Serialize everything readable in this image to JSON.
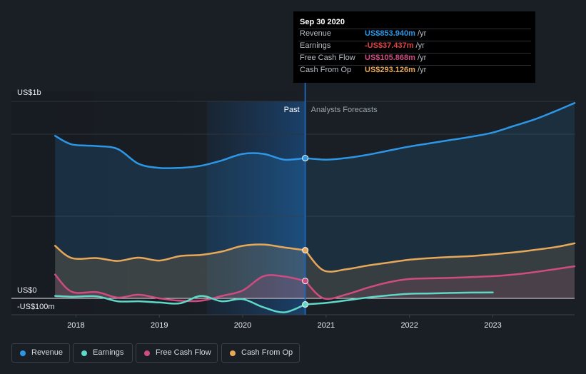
{
  "tooltip": {
    "date": "Sep 30 2020",
    "rows": [
      {
        "label": "Revenue",
        "value": "US$853.940m",
        "unit": " /yr",
        "color": "#2d97e6"
      },
      {
        "label": "Earnings",
        "value": "-US$37.437m",
        "unit": " /yr",
        "color": "#e04343"
      },
      {
        "label": "Free Cash Flow",
        "value": "US$105.868m",
        "unit": " /yr",
        "color": "#cf4c80"
      },
      {
        "label": "Cash From Op",
        "value": "US$293.126m",
        "unit": " /yr",
        "color": "#e8a85a"
      }
    ]
  },
  "legend": [
    {
      "label": "Revenue",
      "color": "#2d97e6"
    },
    {
      "label": "Earnings",
      "color": "#5fd8c8"
    },
    {
      "label": "Free Cash Flow",
      "color": "#cf4c80"
    },
    {
      "label": "Cash From Op",
      "color": "#e8a85a"
    }
  ],
  "chart_data": {
    "type": "line",
    "title": "",
    "y_unit": "US$ millions",
    "y_tick_labels": [
      {
        "label": "US$1b",
        "value": 1000
      },
      {
        "label": "US$0",
        "value": 0
      },
      {
        "label": "-US$100m",
        "value": -100
      }
    ],
    "x_tick_labels": [
      "2018",
      "2019",
      "2020",
      "2021",
      "2022",
      "2023"
    ],
    "ylim": [
      -105,
      1150
    ],
    "xlim": [
      2017.5,
      2023.98
    ],
    "past_label": "Past",
    "forecast_label": "Analysts Forecasts",
    "divider_x": 2020.75,
    "series": [
      {
        "name": "Revenue",
        "color": "#2d97e6",
        "fill": true,
        "past": [
          [
            2017.75,
            990
          ],
          [
            2017.95,
            938
          ],
          [
            2018.25,
            928
          ],
          [
            2018.5,
            910
          ],
          [
            2018.75,
            820
          ],
          [
            2019.0,
            795
          ],
          [
            2019.25,
            795
          ],
          [
            2019.5,
            808
          ],
          [
            2019.75,
            840
          ],
          [
            2020.0,
            880
          ],
          [
            2020.25,
            880
          ],
          [
            2020.5,
            845
          ],
          [
            2020.75,
            854
          ]
        ],
        "forecast": [
          [
            2020.75,
            854
          ],
          [
            2021.0,
            845
          ],
          [
            2021.25,
            855
          ],
          [
            2021.5,
            875
          ],
          [
            2021.75,
            900
          ],
          [
            2022.0,
            925
          ],
          [
            2022.25,
            945
          ],
          [
            2022.5,
            965
          ],
          [
            2022.75,
            985
          ],
          [
            2023.0,
            1010
          ],
          [
            2023.25,
            1050
          ],
          [
            2023.5,
            1090
          ],
          [
            2023.75,
            1140
          ],
          [
            2023.98,
            1190
          ]
        ]
      },
      {
        "name": "Cash From Op",
        "color": "#e8a85a",
        "fill": true,
        "past": [
          [
            2017.75,
            320
          ],
          [
            2017.95,
            245
          ],
          [
            2018.25,
            245
          ],
          [
            2018.5,
            228
          ],
          [
            2018.75,
            248
          ],
          [
            2019.0,
            230
          ],
          [
            2019.25,
            258
          ],
          [
            2019.5,
            265
          ],
          [
            2019.75,
            285
          ],
          [
            2020.0,
            320
          ],
          [
            2020.25,
            328
          ],
          [
            2020.5,
            310
          ],
          [
            2020.75,
            293
          ]
        ],
        "forecast": [
          [
            2020.75,
            293
          ],
          [
            2020.97,
            170
          ],
          [
            2021.25,
            178
          ],
          [
            2021.5,
            200
          ],
          [
            2021.75,
            218
          ],
          [
            2022.0,
            235
          ],
          [
            2022.25,
            245
          ],
          [
            2022.5,
            252
          ],
          [
            2022.75,
            258
          ],
          [
            2023.0,
            268
          ],
          [
            2023.25,
            280
          ],
          [
            2023.5,
            295
          ],
          [
            2023.75,
            312
          ],
          [
            2023.98,
            335
          ]
        ]
      },
      {
        "name": "Free Cash Flow",
        "color": "#cf4c80",
        "fill": true,
        "past": [
          [
            2017.75,
            145
          ],
          [
            2017.95,
            40
          ],
          [
            2018.25,
            38
          ],
          [
            2018.5,
            5
          ],
          [
            2018.75,
            22
          ],
          [
            2019.0,
            0
          ],
          [
            2019.25,
            -15
          ],
          [
            2019.5,
            -15
          ],
          [
            2019.75,
            15
          ],
          [
            2020.0,
            48
          ],
          [
            2020.25,
            135
          ],
          [
            2020.5,
            133
          ],
          [
            2020.75,
            106
          ]
        ],
        "forecast": [
          [
            2020.75,
            106
          ],
          [
            2020.97,
            0
          ],
          [
            2021.25,
            25
          ],
          [
            2021.5,
            65
          ],
          [
            2021.75,
            98
          ],
          [
            2022.0,
            118
          ],
          [
            2022.25,
            122
          ],
          [
            2022.5,
            125
          ],
          [
            2022.75,
            130
          ],
          [
            2023.0,
            135
          ],
          [
            2023.25,
            145
          ],
          [
            2023.5,
            160
          ],
          [
            2023.75,
            178
          ],
          [
            2023.98,
            195
          ]
        ]
      },
      {
        "name": "Earnings",
        "color": "#5fd8c8",
        "fill": false,
        "past": [
          [
            2017.75,
            15
          ],
          [
            2017.95,
            10
          ],
          [
            2018.25,
            12
          ],
          [
            2018.5,
            -18
          ],
          [
            2018.75,
            -18
          ],
          [
            2019.0,
            -25
          ],
          [
            2019.25,
            -30
          ],
          [
            2019.5,
            15
          ],
          [
            2019.75,
            -18
          ],
          [
            2020.0,
            -5
          ],
          [
            2020.25,
            -55
          ],
          [
            2020.5,
            -85
          ],
          [
            2020.75,
            -37
          ]
        ],
        "forecast": [
          [
            2020.75,
            -37
          ],
          [
            2021.0,
            -28
          ],
          [
            2021.25,
            -12
          ],
          [
            2021.5,
            5
          ],
          [
            2021.75,
            18
          ],
          [
            2022.0,
            28
          ],
          [
            2022.25,
            30
          ],
          [
            2022.5,
            33
          ],
          [
            2022.75,
            35
          ],
          [
            2023.0,
            36
          ]
        ]
      }
    ]
  }
}
